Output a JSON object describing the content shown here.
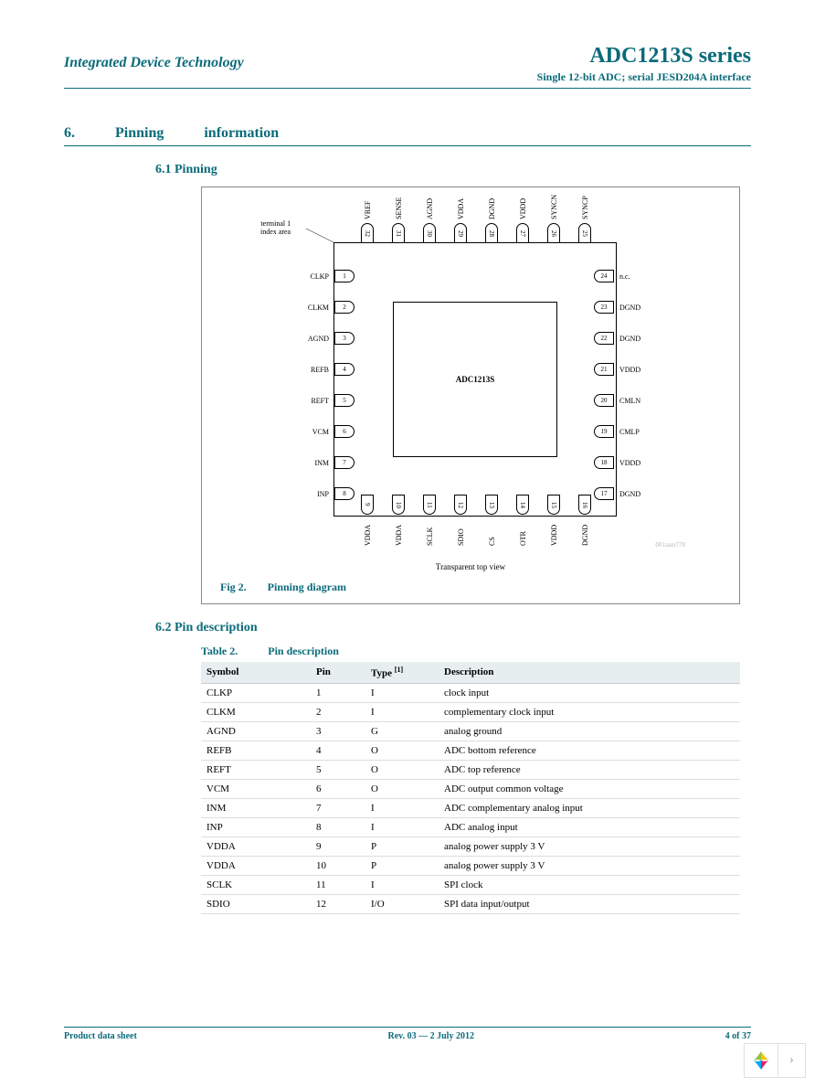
{
  "header": {
    "company": "Integrated Device Technology",
    "product": "ADC1213S series",
    "subtitle": "Single 12-bit ADC; serial JESD204A interface"
  },
  "section": {
    "num": "6.",
    "title_a": "Pinning",
    "title_b": "information"
  },
  "sub1": "6.1 Pinning",
  "sub2": "6.2 Pin description",
  "figure": {
    "chip_label": "ADC1213S",
    "terminal_note1": "terminal 1",
    "terminal_note2": "index area",
    "view": "Transparent top view",
    "code": "001aam778",
    "fignum": "Fig 2.",
    "caption": "Pinning diagram",
    "pins_left": [
      {
        "n": "1",
        "l": "CLKP"
      },
      {
        "n": "2",
        "l": "CLKM"
      },
      {
        "n": "3",
        "l": "AGND"
      },
      {
        "n": "4",
        "l": "REFB"
      },
      {
        "n": "5",
        "l": "REFT"
      },
      {
        "n": "6",
        "l": "VCM"
      },
      {
        "n": "7",
        "l": "INM"
      },
      {
        "n": "8",
        "l": "INP"
      }
    ],
    "pins_bottom": [
      {
        "n": "9",
        "l": "VDDA"
      },
      {
        "n": "10",
        "l": "VDDA"
      },
      {
        "n": "11",
        "l": "SCLK"
      },
      {
        "n": "12",
        "l": "SDIO"
      },
      {
        "n": "13",
        "l": "CS"
      },
      {
        "n": "14",
        "l": "OTR"
      },
      {
        "n": "15",
        "l": "VDDD"
      },
      {
        "n": "16",
        "l": "DGND"
      }
    ],
    "pins_right": [
      {
        "n": "24",
        "l": "n.c."
      },
      {
        "n": "23",
        "l": "DGND"
      },
      {
        "n": "22",
        "l": "DGND"
      },
      {
        "n": "21",
        "l": "VDDD"
      },
      {
        "n": "20",
        "l": "CMLN"
      },
      {
        "n": "19",
        "l": "CMLP"
      },
      {
        "n": "18",
        "l": "VDDD"
      },
      {
        "n": "17",
        "l": "DGND"
      }
    ],
    "pins_top": [
      {
        "n": "32",
        "l": "VREF"
      },
      {
        "n": "31",
        "l": "SENSE"
      },
      {
        "n": "30",
        "l": "AGND"
      },
      {
        "n": "29",
        "l": "VDDA"
      },
      {
        "n": "28",
        "l": "DGND"
      },
      {
        "n": "27",
        "l": "VDDD"
      },
      {
        "n": "26",
        "l": "SYNCN"
      },
      {
        "n": "25",
        "l": "SYNCP"
      }
    ]
  },
  "table": {
    "tnum": "Table 2.",
    "caption": "Pin description",
    "headers": {
      "sym": "Symbol",
      "pin": "Pin",
      "type": "Type",
      "sup": "[1]",
      "desc": "Description"
    },
    "rows": [
      {
        "sym": "CLKP",
        "pin": "1",
        "type": "I",
        "desc": "clock input"
      },
      {
        "sym": "CLKM",
        "pin": "2",
        "type": "I",
        "desc": "complementary clock input"
      },
      {
        "sym": "AGND",
        "pin": "3",
        "type": "G",
        "desc": "analog ground"
      },
      {
        "sym": "REFB",
        "pin": "4",
        "type": "O",
        "desc": "ADC bottom reference"
      },
      {
        "sym": "REFT",
        "pin": "5",
        "type": "O",
        "desc": "ADC top reference"
      },
      {
        "sym": "VCM",
        "pin": "6",
        "type": "O",
        "desc": "ADC output common voltage"
      },
      {
        "sym": "INM",
        "pin": "7",
        "type": "I",
        "desc": "ADC complementary analog input"
      },
      {
        "sym": "INP",
        "pin": "8",
        "type": "I",
        "desc": "ADC analog input"
      },
      {
        "sym": "VDDA",
        "pin": "9",
        "type": "P",
        "desc": "analog power supply 3 V"
      },
      {
        "sym": "VDDA",
        "pin": "10",
        "type": "P",
        "desc": "analog power supply 3 V"
      },
      {
        "sym": "SCLK",
        "pin": "11",
        "type": "I",
        "desc": "SPI clock"
      },
      {
        "sym": "SDIO",
        "pin": "12",
        "type": "I/O",
        "desc": "SPI data input/output"
      }
    ]
  },
  "footer": {
    "left": "Product data sheet",
    "center": "Rev. 03 — 2 July 2012",
    "right": "4 of 37"
  },
  "colors": {
    "teal": "#0a6b7a"
  }
}
